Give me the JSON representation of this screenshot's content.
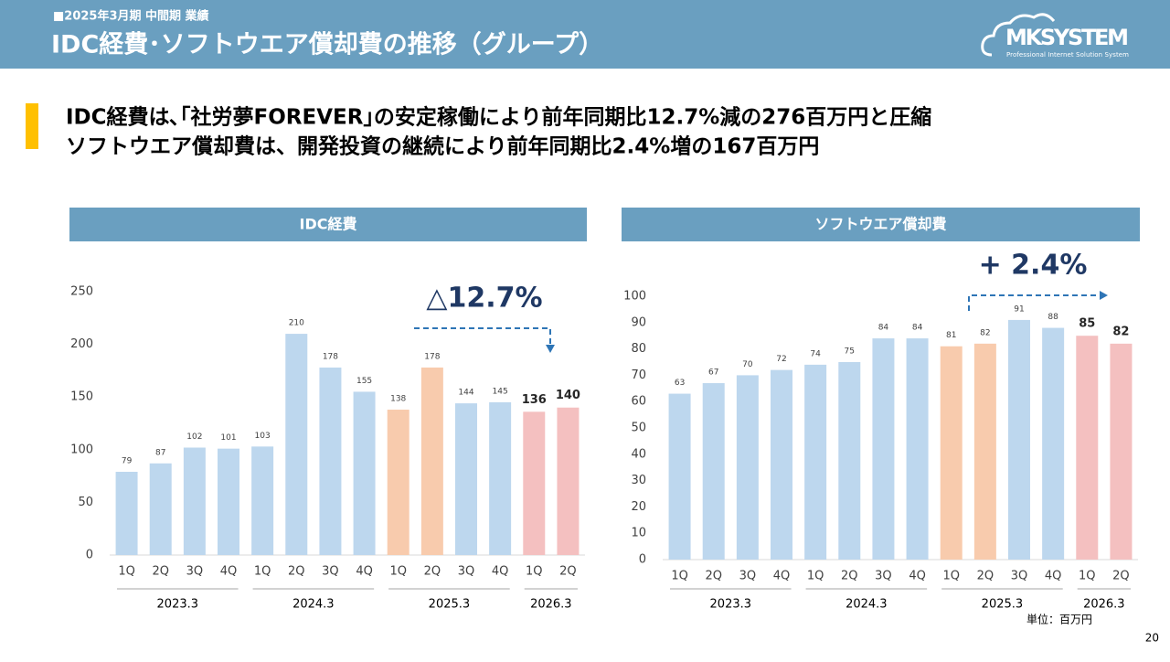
{
  "header": {
    "period": "■2025年3月期 中間期 業績",
    "title": "IDC経費･ソフトウエア償却費の推移（グループ）",
    "logo": "MKSYSTEM",
    "logo_tagline": "Professional Internet Solution System"
  },
  "headline": [
    "IDC経費は､｢社労夢FOREVER｣の安定稼働により前年同期比12.7%減の276百万円と圧縮",
    "ソフトウエア償却費は、開発投資の継続により前年同期比2.4%増の167百万円"
  ],
  "unit_note": "単位：百万円",
  "page_number": "20",
  "chart_data": [
    {
      "type": "bar",
      "title": "IDC経費",
      "annotation": "△12.7%",
      "groups": [
        {
          "label": "2023.3",
          "categories": [
            "1Q",
            "2Q",
            "3Q",
            "4Q"
          ]
        },
        {
          "label": "2024.3",
          "categories": [
            "1Q",
            "2Q",
            "3Q",
            "4Q"
          ]
        },
        {
          "label": "2025.3",
          "categories": [
            "1Q",
            "2Q",
            "3Q",
            "4Q"
          ]
        },
        {
          "label": "2026.3",
          "categories": [
            "1Q",
            "2Q"
          ]
        }
      ],
      "values": [
        79,
        87,
        102,
        101,
        103,
        210,
        178,
        155,
        138,
        178,
        144,
        145,
        136,
        140
      ],
      "colors": [
        "#bdd7ee",
        "#bdd7ee",
        "#bdd7ee",
        "#bdd7ee",
        "#bdd7ee",
        "#bdd7ee",
        "#bdd7ee",
        "#bdd7ee",
        "#f8cbad",
        "#f8cbad",
        "#bdd7ee",
        "#bdd7ee",
        "#f4c0c0",
        "#f4c0c0"
      ],
      "ylim": [
        0,
        250
      ],
      "yticks": [
        0,
        50,
        100,
        150,
        200,
        250
      ]
    },
    {
      "type": "bar",
      "title": "ソフトウエア償却費",
      "annotation": "+ 2.4%",
      "groups": [
        {
          "label": "2023.3",
          "categories": [
            "1Q",
            "2Q",
            "3Q",
            "4Q"
          ]
        },
        {
          "label": "2024.3",
          "categories": [
            "1Q",
            "2Q",
            "3Q",
            "4Q"
          ]
        },
        {
          "label": "2025.3",
          "categories": [
            "1Q",
            "2Q",
            "3Q",
            "4Q"
          ]
        },
        {
          "label": "2026.3",
          "categories": [
            "1Q",
            "2Q"
          ]
        }
      ],
      "values": [
        63,
        67,
        70,
        72,
        74,
        75,
        84,
        84,
        81,
        82,
        91,
        88,
        85,
        82
      ],
      "colors": [
        "#bdd7ee",
        "#bdd7ee",
        "#bdd7ee",
        "#bdd7ee",
        "#bdd7ee",
        "#bdd7ee",
        "#bdd7ee",
        "#bdd7ee",
        "#f8cbad",
        "#f8cbad",
        "#bdd7ee",
        "#bdd7ee",
        "#f4c0c0",
        "#f4c0c0"
      ],
      "ylim": [
        0,
        100
      ],
      "yticks": [
        0,
        10,
        20,
        30,
        40,
        50,
        60,
        70,
        80,
        90,
        100
      ]
    }
  ]
}
